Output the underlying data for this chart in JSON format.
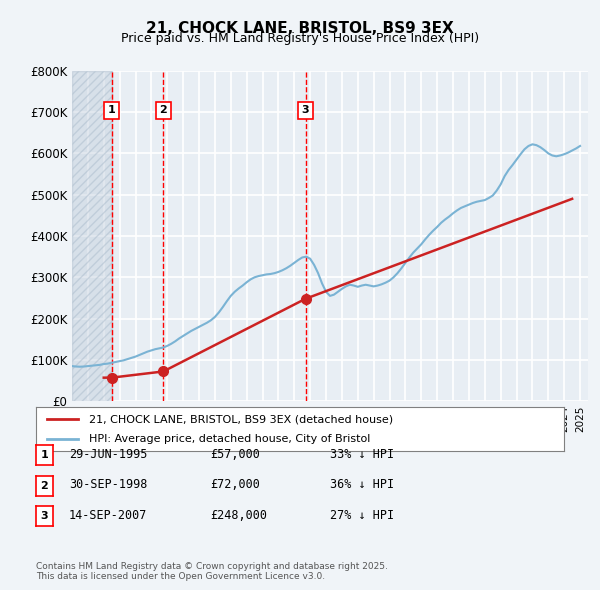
{
  "title": "21, CHOCK LANE, BRISTOL, BS9 3EX",
  "subtitle": "Price paid vs. HM Land Registry's House Price Index (HPI)",
  "ylabel": "",
  "ylim": [
    0,
    800000
  ],
  "yticks": [
    0,
    100000,
    200000,
    300000,
    400000,
    500000,
    600000,
    700000,
    800000
  ],
  "ytick_labels": [
    "£0",
    "£100K",
    "£200K",
    "£300K",
    "£400K",
    "£500K",
    "£600K",
    "£700K",
    "£800K"
  ],
  "xlim_start": 1993.0,
  "xlim_end": 2025.5,
  "background_color": "#f0f4f8",
  "plot_bg_color": "#e8eef4",
  "grid_color": "#ffffff",
  "hatch_color": "#c8d4e0",
  "transactions": [
    {
      "label": "1",
      "date_num": 1995.49,
      "price": 57000,
      "text": "29-JUN-1995",
      "price_str": "£57,000",
      "pct_str": "33% ↓ HPI"
    },
    {
      "label": "2",
      "date_num": 1998.75,
      "price": 72000,
      "text": "30-SEP-1998",
      "price_str": "£72,000",
      "pct_str": "36% ↓ HPI"
    },
    {
      "label": "3",
      "date_num": 2007.71,
      "price": 248000,
      "text": "14-SEP-2007",
      "price_str": "£248,000",
      "pct_str": "27% ↓ HPI"
    }
  ],
  "hpi_line_color": "#7ab3d4",
  "price_line_color": "#cc2222",
  "legend_label_price": "21, CHOCK LANE, BRISTOL, BS9 3EX (detached house)",
  "legend_label_hpi": "HPI: Average price, detached house, City of Bristol",
  "footer": "Contains HM Land Registry data © Crown copyright and database right 2025.\nThis data is licensed under the Open Government Licence v3.0.",
  "hpi_x": [
    1993.0,
    1993.25,
    1993.5,
    1993.75,
    1994.0,
    1994.25,
    1994.5,
    1994.75,
    1995.0,
    1995.25,
    1995.5,
    1995.75,
    1996.0,
    1996.25,
    1996.5,
    1996.75,
    1997.0,
    1997.25,
    1997.5,
    1997.75,
    1998.0,
    1998.25,
    1998.5,
    1998.75,
    1999.0,
    1999.25,
    1999.5,
    1999.75,
    2000.0,
    2000.25,
    2000.5,
    2000.75,
    2001.0,
    2001.25,
    2001.5,
    2001.75,
    2002.0,
    2002.25,
    2002.5,
    2002.75,
    2003.0,
    2003.25,
    2003.5,
    2003.75,
    2004.0,
    2004.25,
    2004.5,
    2004.75,
    2005.0,
    2005.25,
    2005.5,
    2005.75,
    2006.0,
    2006.25,
    2006.5,
    2006.75,
    2007.0,
    2007.25,
    2007.5,
    2007.75,
    2008.0,
    2008.25,
    2008.5,
    2008.75,
    2009.0,
    2009.25,
    2009.5,
    2009.75,
    2010.0,
    2010.25,
    2010.5,
    2010.75,
    2011.0,
    2011.25,
    2011.5,
    2011.75,
    2012.0,
    2012.25,
    2012.5,
    2012.75,
    2013.0,
    2013.25,
    2013.5,
    2013.75,
    2014.0,
    2014.25,
    2014.5,
    2014.75,
    2015.0,
    2015.25,
    2015.5,
    2015.75,
    2016.0,
    2016.25,
    2016.5,
    2016.75,
    2017.0,
    2017.25,
    2017.5,
    2017.75,
    2018.0,
    2018.25,
    2018.5,
    2018.75,
    2019.0,
    2019.25,
    2019.5,
    2019.75,
    2020.0,
    2020.25,
    2020.5,
    2020.75,
    2021.0,
    2021.25,
    2021.5,
    2021.75,
    2022.0,
    2022.25,
    2022.5,
    2022.75,
    2023.0,
    2023.25,
    2023.5,
    2023.75,
    2024.0,
    2024.25,
    2024.5,
    2024.75,
    2025.0
  ],
  "hpi_y": [
    85000,
    84000,
    83500,
    84000,
    85000,
    86000,
    87000,
    88000,
    90000,
    91000,
    93000,
    95000,
    97000,
    99000,
    102000,
    105000,
    108000,
    112000,
    116000,
    120000,
    123000,
    126000,
    128000,
    130000,
    134000,
    139000,
    145000,
    152000,
    158000,
    164000,
    170000,
    175000,
    180000,
    185000,
    190000,
    196000,
    204000,
    215000,
    228000,
    242000,
    255000,
    265000,
    273000,
    280000,
    288000,
    295000,
    300000,
    303000,
    305000,
    307000,
    308000,
    310000,
    313000,
    317000,
    322000,
    328000,
    335000,
    342000,
    348000,
    350000,
    345000,
    330000,
    310000,
    285000,
    265000,
    255000,
    258000,
    265000,
    272000,
    278000,
    282000,
    280000,
    277000,
    280000,
    282000,
    280000,
    278000,
    280000,
    283000,
    287000,
    292000,
    300000,
    310000,
    322000,
    335000,
    348000,
    360000,
    370000,
    380000,
    392000,
    403000,
    413000,
    422000,
    432000,
    440000,
    447000,
    455000,
    462000,
    468000,
    472000,
    476000,
    480000,
    483000,
    485000,
    487000,
    492000,
    498000,
    510000,
    525000,
    545000,
    560000,
    572000,
    585000,
    598000,
    610000,
    618000,
    622000,
    620000,
    615000,
    608000,
    600000,
    595000,
    593000,
    595000,
    598000,
    602000,
    607000,
    612000,
    618000
  ],
  "price_x": [
    1995.0,
    1995.49,
    1998.75,
    2007.71,
    2024.5
  ],
  "price_y": [
    57000,
    57000,
    72000,
    248000,
    490000
  ]
}
